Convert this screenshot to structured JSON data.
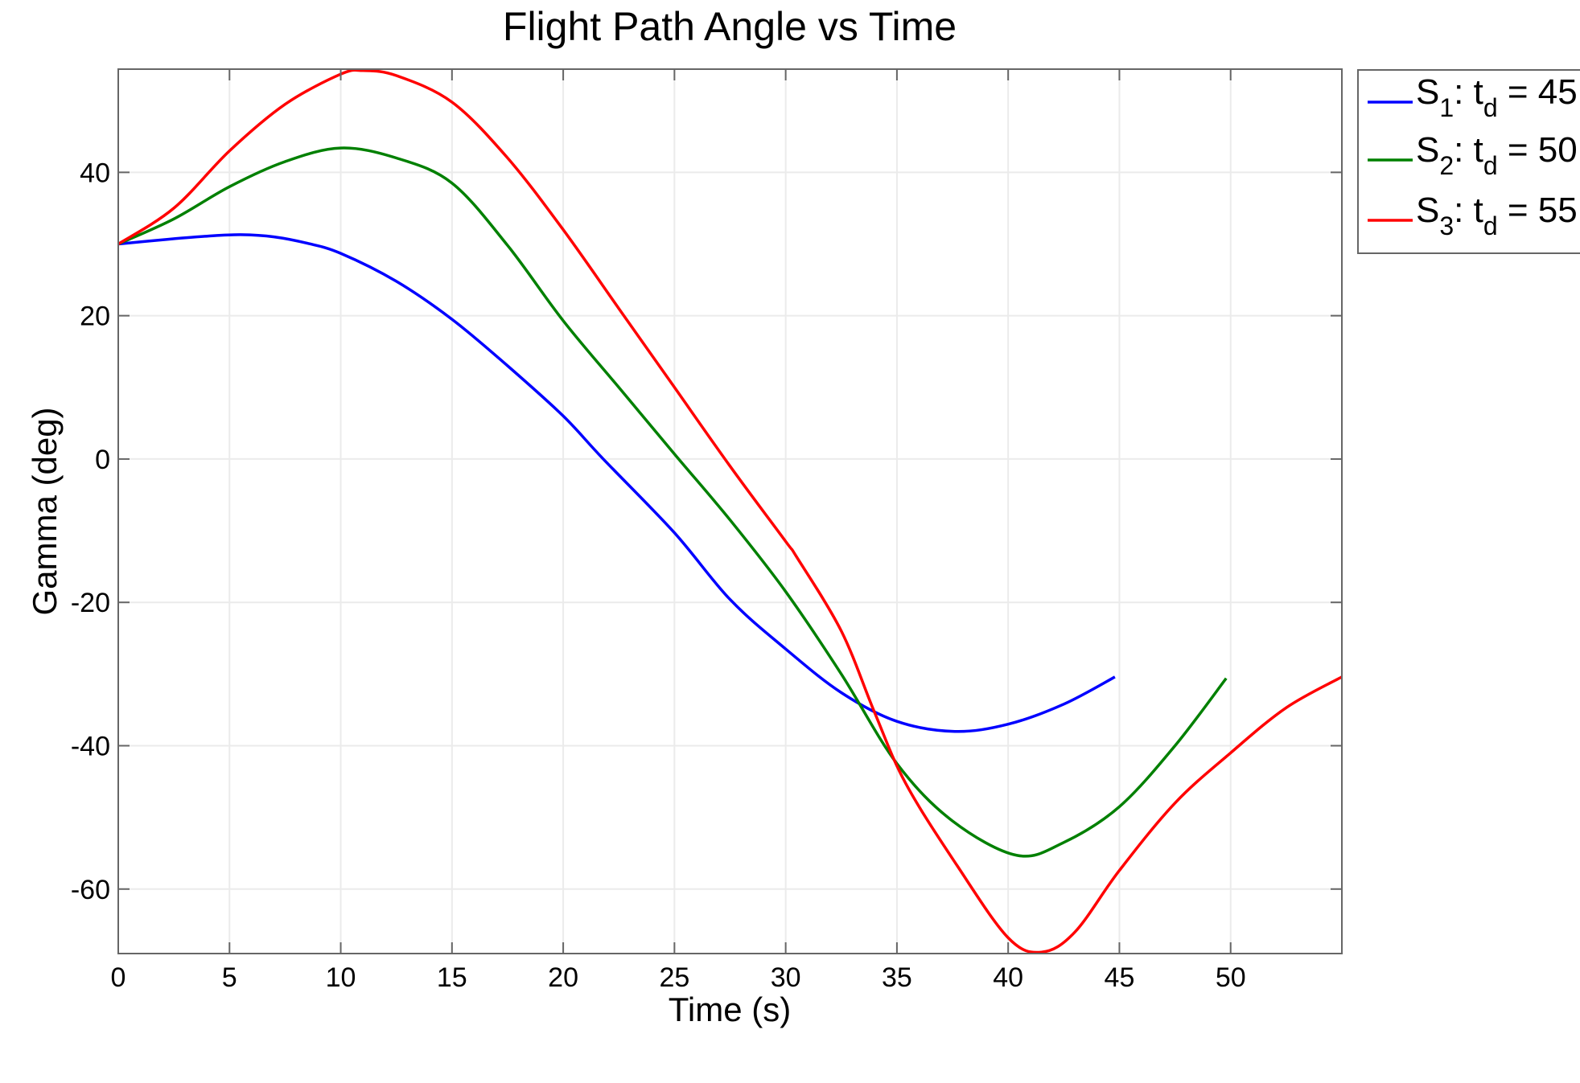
{
  "chart_data": {
    "type": "line",
    "title": "Flight Path Angle vs Time",
    "xlabel": "Time (s)",
    "ylabel": "Gamma (deg)",
    "xlim": [
      0,
      55
    ],
    "ylim": [
      -69,
      54.4
    ],
    "xticks": [
      0,
      5,
      10,
      15,
      20,
      25,
      30,
      35,
      40,
      45,
      50
    ],
    "yticks": [
      -60,
      -40,
      -20,
      0,
      20,
      40
    ],
    "grid": true,
    "legend_position": "outside-right-top",
    "series": [
      {
        "name": "S1: td = 45",
        "legend": {
          "main": "S",
          "sub": "1",
          "mid": ": t",
          "sub2": "d",
          "tail": " = 45"
        },
        "color": "#0000ff",
        "x": [
          0,
          2,
          4,
          5.5,
          7,
          8.5,
          10,
          12.5,
          15,
          17.5,
          20,
          21.8,
          25,
          27.5,
          30,
          32.5,
          35,
          37.6,
          40,
          42.5,
          44.8
        ],
        "y": [
          30,
          30.6,
          31.1,
          31.3,
          31.0,
          30.1,
          28.7,
          24.8,
          19.5,
          13.0,
          6.0,
          0,
          -10.3,
          -19.6,
          -26.5,
          -32.6,
          -36.6,
          -38.0,
          -37.0,
          -34.2,
          -30.4
        ]
      },
      {
        "name": "S2: td = 50",
        "legend": {
          "main": "S",
          "sub": "2",
          "mid": ": t",
          "sub2": "d",
          "tail": " = 50"
        },
        "color": "#008000",
        "x": [
          0,
          2.5,
          5,
          7.5,
          10,
          12.5,
          15,
          17.5,
          20,
          22.5,
          25,
          27.5,
          30,
          32.5,
          35,
          37.5,
          40.4,
          42.5,
          45,
          47.5,
          49.8
        ],
        "y": [
          30,
          33.5,
          38.0,
          41.5,
          43.4,
          42.0,
          38.5,
          29.8,
          19.3,
          10.0,
          0.7,
          -8.5,
          -18.5,
          -30.0,
          -42.5,
          -50.5,
          -55.3,
          -53.5,
          -48.5,
          -40.0,
          -30.6
        ]
      },
      {
        "name": "S3: td = 55",
        "legend": {
          "main": "S",
          "sub": "3",
          "mid": ": t",
          "sub2": "d",
          "tail": " = 55"
        },
        "color": "#ff0000",
        "x": [
          0,
          2.5,
          5,
          7.5,
          10,
          11,
          12.5,
          15,
          17.5,
          20,
          22.5,
          25,
          27.5,
          30,
          30.5,
          32.5,
          34,
          35.4,
          37.7,
          40,
          41.5,
          43,
          45,
          47.5,
          50,
          52.5,
          55
        ],
        "y": [
          30,
          35.0,
          43.0,
          49.5,
          53.7,
          54.2,
          53.5,
          49.8,
          42.0,
          32.0,
          21.0,
          10.0,
          -1.0,
          -11.5,
          -13.7,
          -24.0,
          -35.4,
          -45.3,
          -56.7,
          -66.8,
          -68.8,
          -66.0,
          -57.4,
          -48.0,
          -41.0,
          -34.7,
          -30.4
        ]
      }
    ]
  }
}
